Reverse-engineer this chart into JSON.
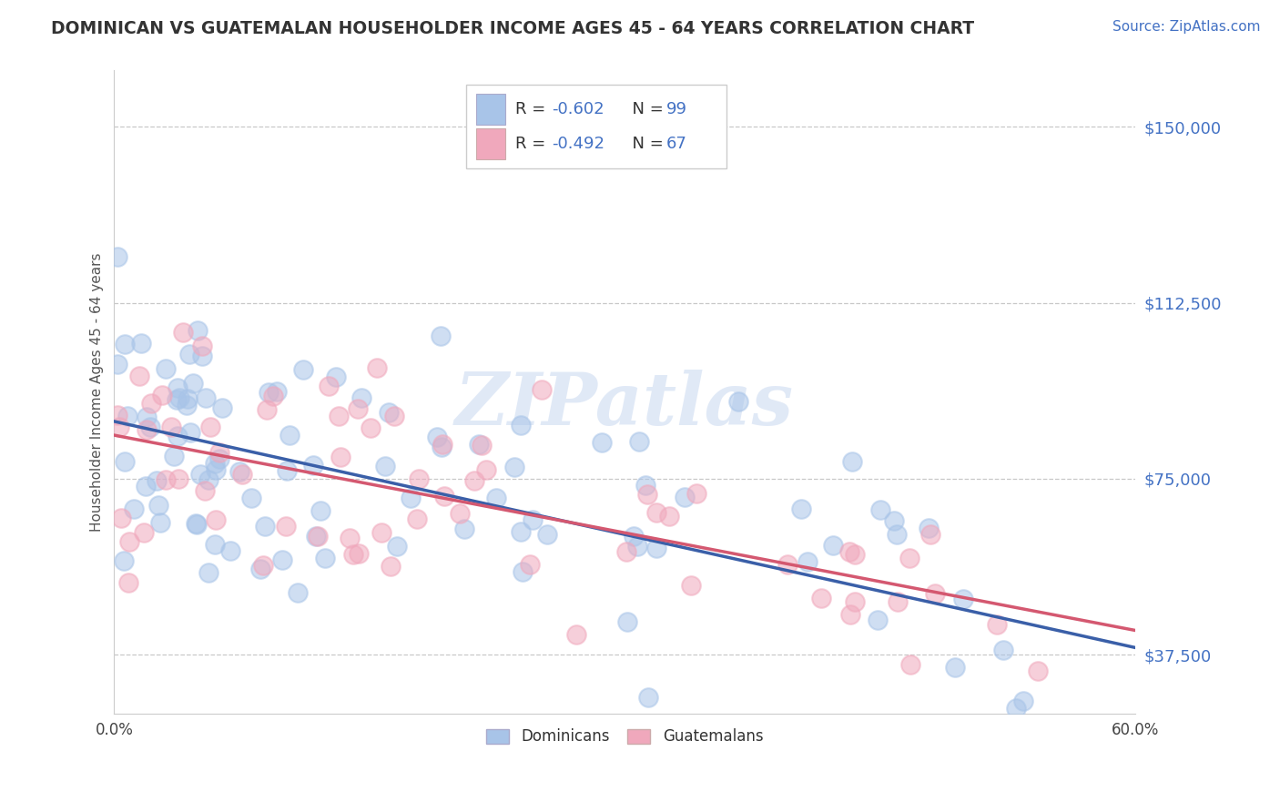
{
  "title": "DOMINICAN VS GUATEMALAN HOUSEHOLDER INCOME AGES 45 - 64 YEARS CORRELATION CHART",
  "source_text": "Source: ZipAtlas.com",
  "ylabel": "Householder Income Ages 45 - 64 years",
  "xlim": [
    0.0,
    0.6
  ],
  "ylim": [
    25000,
    162000
  ],
  "yticks": [
    37500,
    75000,
    112500,
    150000
  ],
  "ytick_labels": [
    "$37,500",
    "$75,000",
    "$112,500",
    "$150,000"
  ],
  "xticks": [
    0.0,
    0.1,
    0.2,
    0.3,
    0.4,
    0.5,
    0.6
  ],
  "xtick_labels": [
    "0.0%",
    "",
    "",
    "",
    "",
    "",
    "60.0%"
  ],
  "dominican_R": -0.602,
  "dominican_N": 99,
  "guatemalan_R": -0.492,
  "guatemalan_N": 67,
  "blue_color": "#a8c4e8",
  "blue_line_color": "#3a5fa8",
  "pink_color": "#f0a8bc",
  "pink_line_color": "#d45870",
  "legend_label_blue": "Dominicans",
  "legend_label_pink": "Guatemalans",
  "watermark": "ZIPatlas",
  "watermark_color": "#c8d8f0",
  "background_color": "#ffffff",
  "grid_color": "#c8c8c8",
  "title_color": "#333333",
  "source_color": "#4472c4",
  "ytick_color": "#4472c4",
  "text_blue": "#4472c4"
}
